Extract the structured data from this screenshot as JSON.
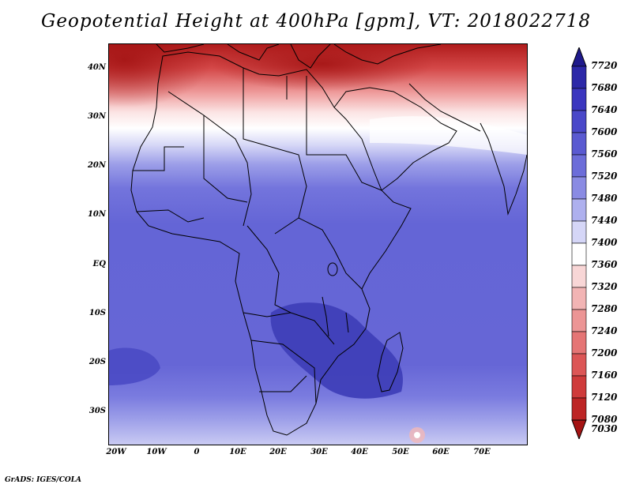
{
  "title": "Geopotential Height at 400hPa [gpm], VT: 2018022718",
  "lat_labels": [
    "40N",
    "30N",
    "20N",
    "10N",
    "EQ",
    "10S",
    "20S",
    "30S"
  ],
  "lon_labels": [
    "20W",
    "10W",
    "0",
    "10E",
    "20E",
    "30E",
    "40E",
    "50E",
    "60E",
    "70E"
  ],
  "legend": {
    "levels": [
      "7720",
      "7680",
      "7640",
      "7600",
      "7560",
      "7520",
      "7480",
      "7440",
      "7400",
      "7360",
      "7320",
      "7280",
      "7240",
      "7200",
      "7160",
      "7120",
      "7080",
      "7030"
    ],
    "colors": [
      "#1f1a8c",
      "#2c28a8",
      "#3b36bf",
      "#4a48c9",
      "#5a5ad1",
      "#6c6dd9",
      "#8a8be3",
      "#aeb0ee",
      "#d5d6f7",
      "#ffffff",
      "#f8d6d6",
      "#f2b4b4",
      "#ec9595",
      "#e57575",
      "#dc5656",
      "#cf3b3b",
      "#bd2525",
      "#a51414"
    ]
  },
  "credit": "GrADS: IGES/COLA"
}
